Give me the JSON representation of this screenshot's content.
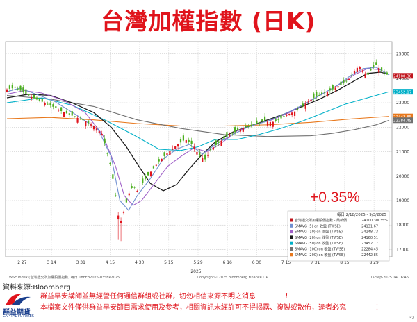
{
  "title": "台灣加權指數 (日K)",
  "source": "資料來源:Bloomberg",
  "notes": [
    "群益早安講師並無經營任何通信群組或社群，切勿相信來源不明之消息",
    "本檔案文件僅供群益早安節目需求使用及參考，相關資訊未經許可不得揭露、複製或散佈，違者必究"
  ],
  "bang": "！",
  "logo": {
    "name": "群益期貨",
    "sub": "CAPITAL FUTURES"
  },
  "page_number": "32",
  "chart_data": {
    "type": "candlestick",
    "ticker_line": "TWSE Index (台灣證交所加權股價指數) 每日 18FEB2025-03SEP2025",
    "copyright": "Copyright© 2025 Bloomberg Finance L.P.",
    "timestamp": "03-Sep-2025 14:16:46",
    "change_label": "+0.35%",
    "year_label": "2025",
    "ylim": [
      16700,
      25500
    ],
    "yticks": [
      25000,
      24000,
      23000,
      22000,
      21000,
      20000,
      19000,
      18000,
      17000
    ],
    "ytick_labels": [
      "25000",
      "24000",
      "23000",
      "22000",
      "21000",
      "20000",
      "19000",
      "18000",
      "17000"
    ],
    "xticks": [
      "2 27",
      "3 14",
      "3 31",
      "4 15",
      "4 30",
      "5 15",
      "5 29",
      "6 16",
      "6 30",
      "7 15",
      "7 31",
      "8 15",
      "8 29"
    ],
    "last_value_tags": [
      {
        "label": "24100.30",
        "value": 24100.3,
        "color": "#c0141c"
      },
      {
        "label": "23452.17",
        "value": 23452.17,
        "color": "#00b0c8"
      },
      {
        "label": "22442.85",
        "value": 22442.85,
        "color": "#e8781c"
      },
      {
        "label": "22284.45",
        "value": 22284.45,
        "color": "#707070"
      }
    ],
    "legend": {
      "header": "每日 2/18/2025 - 9/3/2025",
      "rows": [
        {
          "label": "台灣證交所加權股價指數 - 最新價",
          "value": "24100.30",
          "extra": "0.35%",
          "color": "#c0141c"
        },
        {
          "label": "SMAVG (5)  on 收盤 (TWSE)",
          "value": "24131.67",
          "color": "#6f8fd0"
        },
        {
          "label": "SMAVG (10)  on 收盤 (TWSE)",
          "value": "24148.73",
          "color": "#a060c8"
        },
        {
          "label": "SMAVG (20)  on 收盤 (TWSE)",
          "value": "24160.51",
          "color": "#1a1a1a"
        },
        {
          "label": "SMAVG (50)  on 收盤 (TWSE)",
          "value": "23452.17",
          "color": "#00b0c8"
        },
        {
          "label": "SMAVG (100)  on 收盤 (TWSE)",
          "value": "22284.45",
          "color": "#707070"
        },
        {
          "label": "SMAVG (200)  on 收盤 (TWSE)",
          "value": "22442.85",
          "color": "#e8781c"
        }
      ]
    },
    "close_path": [
      [
        0,
        23550
      ],
      [
        4,
        23620
      ],
      [
        8,
        23400
      ],
      [
        12,
        23200
      ],
      [
        16,
        23050
      ],
      [
        20,
        22900
      ],
      [
        24,
        22700
      ],
      [
        28,
        22550
      ],
      [
        32,
        22400
      ],
      [
        36,
        22250
      ],
      [
        40,
        22050
      ],
      [
        44,
        21700
      ],
      [
        46,
        21000
      ],
      [
        48,
        20300
      ],
      [
        50,
        19200
      ],
      [
        52,
        17900
      ],
      [
        54,
        18600
      ],
      [
        56,
        19250
      ],
      [
        58,
        19600
      ],
      [
        60,
        19400
      ],
      [
        63,
        19800
      ],
      [
        66,
        20150
      ],
      [
        70,
        20600
      ],
      [
        74,
        20950
      ],
      [
        78,
        21250
      ],
      [
        82,
        21500
      ],
      [
        86,
        21250
      ],
      [
        88,
        20900
      ],
      [
        91,
        20650
      ],
      [
        94,
        21100
      ],
      [
        98,
        21400
      ],
      [
        102,
        21650
      ],
      [
        106,
        21850
      ],
      [
        110,
        22000
      ],
      [
        114,
        22100
      ],
      [
        118,
        22250
      ],
      [
        122,
        22200
      ],
      [
        126,
        22350
      ],
      [
        130,
        22550
      ],
      [
        134,
        22700
      ],
      [
        138,
        23000
      ],
      [
        142,
        23250
      ],
      [
        146,
        23400
      ],
      [
        150,
        23550
      ],
      [
        154,
        23750
      ],
      [
        158,
        24000
      ],
      [
        160,
        24300
      ],
      [
        162,
        24500
      ],
      [
        164,
        24300
      ],
      [
        166,
        24100
      ],
      [
        168,
        24400
      ],
      [
        170,
        24550
      ],
      [
        172,
        24350
      ],
      [
        174,
        24200
      ],
      [
        176,
        24100
      ]
    ],
    "series": [
      {
        "name": "SMAVG (200)",
        "color": "#e8781c",
        "points": [
          [
            0,
            22350
          ],
          [
            20,
            22400
          ],
          [
            40,
            22300
          ],
          [
            60,
            22150
          ],
          [
            80,
            22050
          ],
          [
            100,
            22050
          ],
          [
            120,
            22100
          ],
          [
            140,
            22200
          ],
          [
            160,
            22350
          ],
          [
            176,
            22443
          ]
        ]
      },
      {
        "name": "SMAVG (100)",
        "color": "#707070",
        "points": [
          [
            0,
            23300
          ],
          [
            20,
            23150
          ],
          [
            40,
            22850
          ],
          [
            60,
            22300
          ],
          [
            80,
            21950
          ],
          [
            100,
            21700
          ],
          [
            120,
            21620
          ],
          [
            140,
            21650
          ],
          [
            150,
            21750
          ],
          [
            160,
            21900
          ],
          [
            170,
            22100
          ],
          [
            176,
            22284
          ]
        ]
      },
      {
        "name": "SMAVG (50)",
        "color": "#00b0c8",
        "points": [
          [
            0,
            23000
          ],
          [
            16,
            23200
          ],
          [
            30,
            22900
          ],
          [
            45,
            22300
          ],
          [
            58,
            21700
          ],
          [
            70,
            21100
          ],
          [
            80,
            21050
          ],
          [
            88,
            21200
          ],
          [
            96,
            21500
          ],
          [
            106,
            21500
          ],
          [
            116,
            21700
          ],
          [
            126,
            21950
          ],
          [
            136,
            22250
          ],
          [
            146,
            22600
          ],
          [
            156,
            22950
          ],
          [
            166,
            23200
          ],
          [
            176,
            23452
          ]
        ]
      },
      {
        "name": "SMAVG (20)",
        "color": "#1a1a1a",
        "points": [
          [
            0,
            23200
          ],
          [
            10,
            23350
          ],
          [
            20,
            23300
          ],
          [
            30,
            23000
          ],
          [
            40,
            22600
          ],
          [
            48,
            22000
          ],
          [
            55,
            21200
          ],
          [
            60,
            20500
          ],
          [
            66,
            19700
          ],
          [
            72,
            19400
          ],
          [
            78,
            19650
          ],
          [
            84,
            20300
          ],
          [
            90,
            20900
          ],
          [
            96,
            21400
          ],
          [
            104,
            21800
          ],
          [
            112,
            22050
          ],
          [
            120,
            22300
          ],
          [
            128,
            22550
          ],
          [
            136,
            22850
          ],
          [
            144,
            23150
          ],
          [
            152,
            23500
          ],
          [
            160,
            23900
          ],
          [
            166,
            24200
          ],
          [
            172,
            24250
          ],
          [
            176,
            24160
          ]
        ]
      },
      {
        "name": "SMAVG (10)",
        "color": "#a060c8",
        "points": [
          [
            0,
            23350
          ],
          [
            8,
            23500
          ],
          [
            16,
            23400
          ],
          [
            26,
            23100
          ],
          [
            36,
            22600
          ],
          [
            44,
            21700
          ],
          [
            50,
            20400
          ],
          [
            54,
            19200
          ],
          [
            58,
            18800
          ],
          [
            62,
            19000
          ],
          [
            68,
            19700
          ],
          [
            74,
            20400
          ],
          [
            80,
            20800
          ],
          [
            86,
            21150
          ],
          [
            92,
            21000
          ],
          [
            98,
            21300
          ],
          [
            106,
            21850
          ],
          [
            114,
            22100
          ],
          [
            122,
            22300
          ],
          [
            130,
            22600
          ],
          [
            138,
            23000
          ],
          [
            146,
            23400
          ],
          [
            154,
            23800
          ],
          [
            160,
            24150
          ],
          [
            166,
            24400
          ],
          [
            172,
            24350
          ],
          [
            176,
            24149
          ]
        ]
      },
      {
        "name": "SMAVG (5)",
        "color": "#6f8fd0",
        "points": [
          [
            0,
            23450
          ],
          [
            6,
            23600
          ],
          [
            12,
            23400
          ],
          [
            22,
            23050
          ],
          [
            32,
            22500
          ],
          [
            42,
            21900
          ],
          [
            48,
            20800
          ],
          [
            52,
            19000
          ],
          [
            56,
            18600
          ],
          [
            60,
            19200
          ],
          [
            66,
            19900
          ],
          [
            72,
            20700
          ],
          [
            78,
            21100
          ],
          [
            84,
            21300
          ],
          [
            90,
            20900
          ],
          [
            96,
            21300
          ],
          [
            104,
            21700
          ],
          [
            112,
            22050
          ],
          [
            120,
            22250
          ],
          [
            128,
            22550
          ],
          [
            136,
            22900
          ],
          [
            144,
            23300
          ],
          [
            152,
            23700
          ],
          [
            158,
            24100
          ],
          [
            164,
            24400
          ],
          [
            170,
            24450
          ],
          [
            176,
            24132
          ]
        ]
      }
    ]
  }
}
